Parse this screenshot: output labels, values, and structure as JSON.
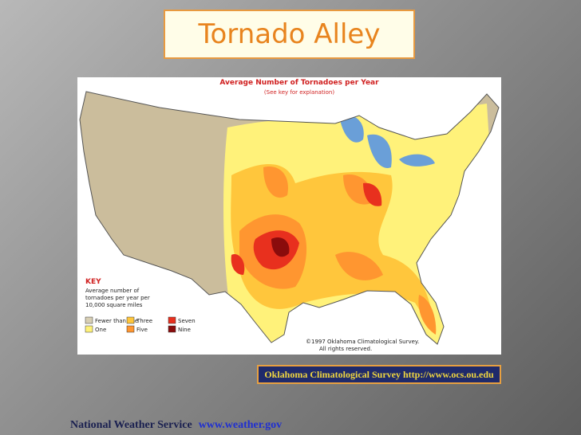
{
  "title": "Tornado Alley",
  "map": {
    "title": "Average Number of Tornadoes per Year",
    "subtitle": "(See key for explanation)",
    "copyright": [
      "©1997 Oklahoma Climatological Survey.",
      "All rights reserved."
    ]
  },
  "key": {
    "heading": "KEY",
    "description": [
      "Average number of",
      "tornadoes per year per",
      "10,000 square miles"
    ],
    "items": [
      {
        "label": "Fewer than one",
        "color": "#d8cfb4"
      },
      {
        "label": "One",
        "color": "#fff27a"
      },
      {
        "label": "Three",
        "color": "#ffc63c"
      },
      {
        "label": "Five",
        "color": "#ff9630"
      },
      {
        "label": "Seven",
        "color": "#e8301e"
      },
      {
        "label": "Nine",
        "color": "#8a0c0c"
      }
    ]
  },
  "source": "Oklahoma Climatological Survey http://www.ocs.ou.edu",
  "footer": {
    "org": "National Weather Service",
    "url": "www.weather.gov"
  }
}
